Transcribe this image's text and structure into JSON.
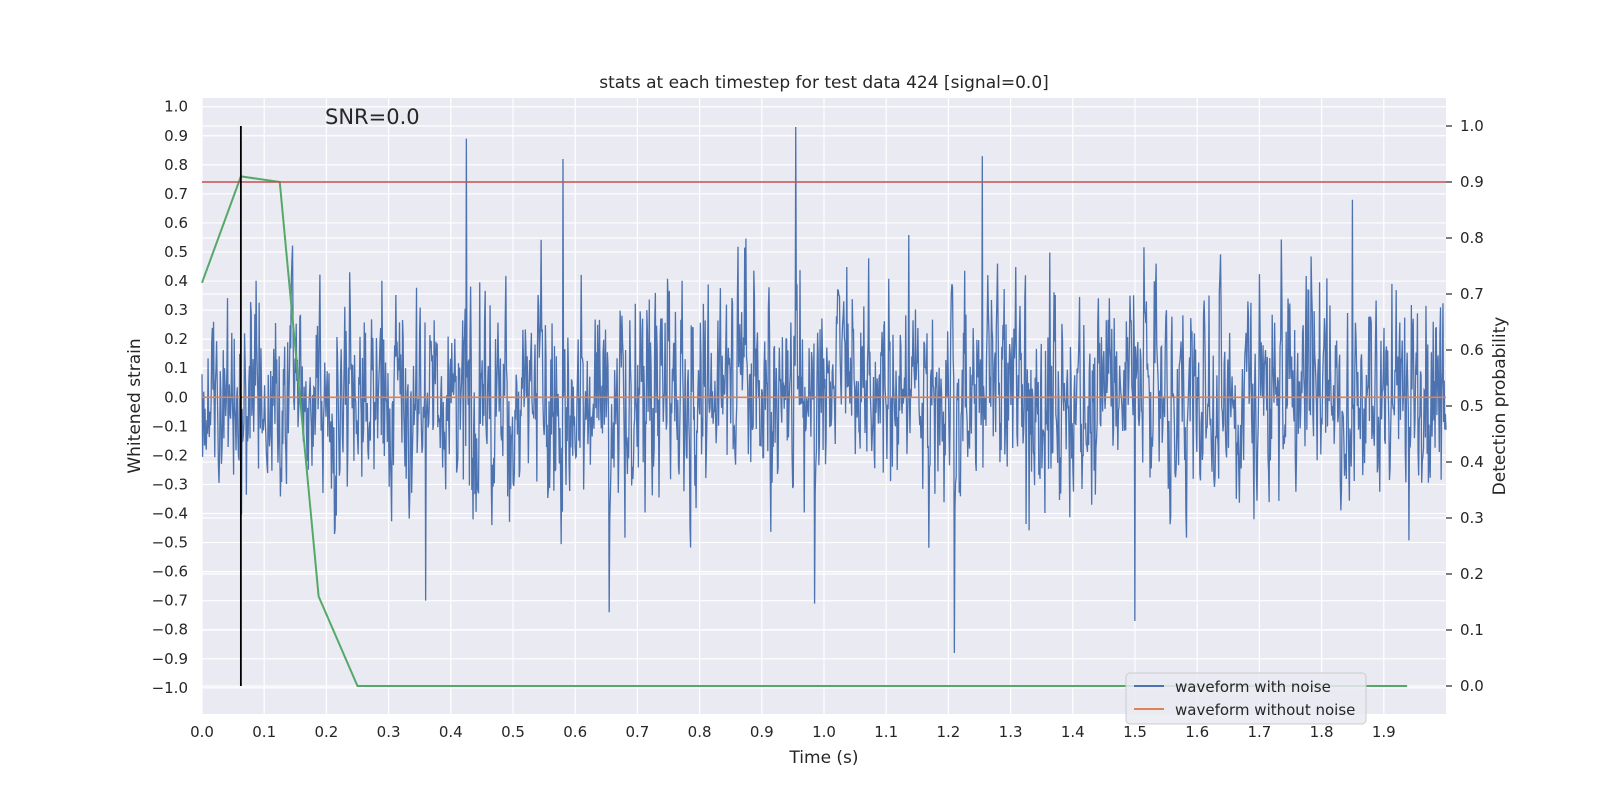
{
  "chart_data": {
    "type": "line",
    "title": "stats at each timestep for test data 424 [signal=0.0]",
    "annotation": "SNR=0.0",
    "xlabel": "Time (s)",
    "ylabel": "Whitened strain",
    "y2label": "Detection probability",
    "xlim": [
      0.0,
      2.0
    ],
    "ylim": [
      -1.09,
      1.03
    ],
    "y2lim": [
      -0.05,
      1.05
    ],
    "xticks": [
      "0.0",
      "0.1",
      "0.2",
      "0.3",
      "0.4",
      "0.5",
      "0.6",
      "0.7",
      "0.8",
      "0.9",
      "1.0",
      "1.1",
      "1.2",
      "1.3",
      "1.4",
      "1.5",
      "1.6",
      "1.7",
      "1.8",
      "1.9"
    ],
    "yticks": [
      "1.0",
      "0.9",
      "0.8",
      "0.7",
      "0.6",
      "0.5",
      "0.4",
      "0.3",
      "0.2",
      "0.1",
      "0.0",
      "−0.1",
      "−0.2",
      "−0.3",
      "−0.4",
      "−0.5",
      "−0.6",
      "−0.7",
      "−0.8",
      "−0.9",
      "−1.0"
    ],
    "y2ticks": [
      "1.0",
      "0.9",
      "0.8",
      "0.7",
      "0.6",
      "0.5",
      "0.4",
      "0.3",
      "0.2",
      "0.1",
      "0.0"
    ],
    "grid": true,
    "legend_position": "bottom-right",
    "series": [
      {
        "name": "waveform with noise",
        "axis": "left",
        "color": "#4c72b0",
        "style": "dense noise, amplitude roughly ±0.4 with spikes to ±0.9",
        "n_points": 2048,
        "notable_peaks": [
          {
            "x": 0.425,
            "y": 0.89
          },
          {
            "x": 0.58,
            "y": 0.82
          },
          {
            "x": 0.955,
            "y": 0.93
          },
          {
            "x": 1.255,
            "y": 0.83
          },
          {
            "x": 1.21,
            "y": -0.88
          },
          {
            "x": 1.5,
            "y": -0.77
          },
          {
            "x": 0.655,
            "y": -0.74
          },
          {
            "x": 0.36,
            "y": -0.7
          },
          {
            "x": 0.985,
            "y": -0.71
          },
          {
            "x": 1.85,
            "y": 0.68
          }
        ]
      },
      {
        "name": "waveform without noise",
        "axis": "left",
        "color": "#dd8452",
        "x": [
          0.0,
          2.0
        ],
        "y": [
          0.0,
          0.0
        ]
      },
      {
        "name": "",
        "axis": "right",
        "color": "#55a868",
        "x": [
          0.0,
          0.0625,
          0.125,
          0.1875,
          0.25,
          0.3125,
          0.5,
          1.0,
          1.5,
          1.9375
        ],
        "y": [
          0.72,
          0.91,
          0.9,
          0.16,
          0.0,
          0.0,
          0.0,
          0.0,
          0.0,
          0.0
        ]
      }
    ],
    "reference_lines": [
      {
        "orientation": "horizontal",
        "axis": "right",
        "value": 0.9,
        "color": "#c44e52"
      },
      {
        "orientation": "vertical",
        "value": 0.0625,
        "y2_from": 0.0,
        "y2_to": 1.0,
        "color": "#000000"
      }
    ],
    "colors": {
      "plot_background": "#eaeaf2",
      "grid": "#ffffff"
    }
  }
}
